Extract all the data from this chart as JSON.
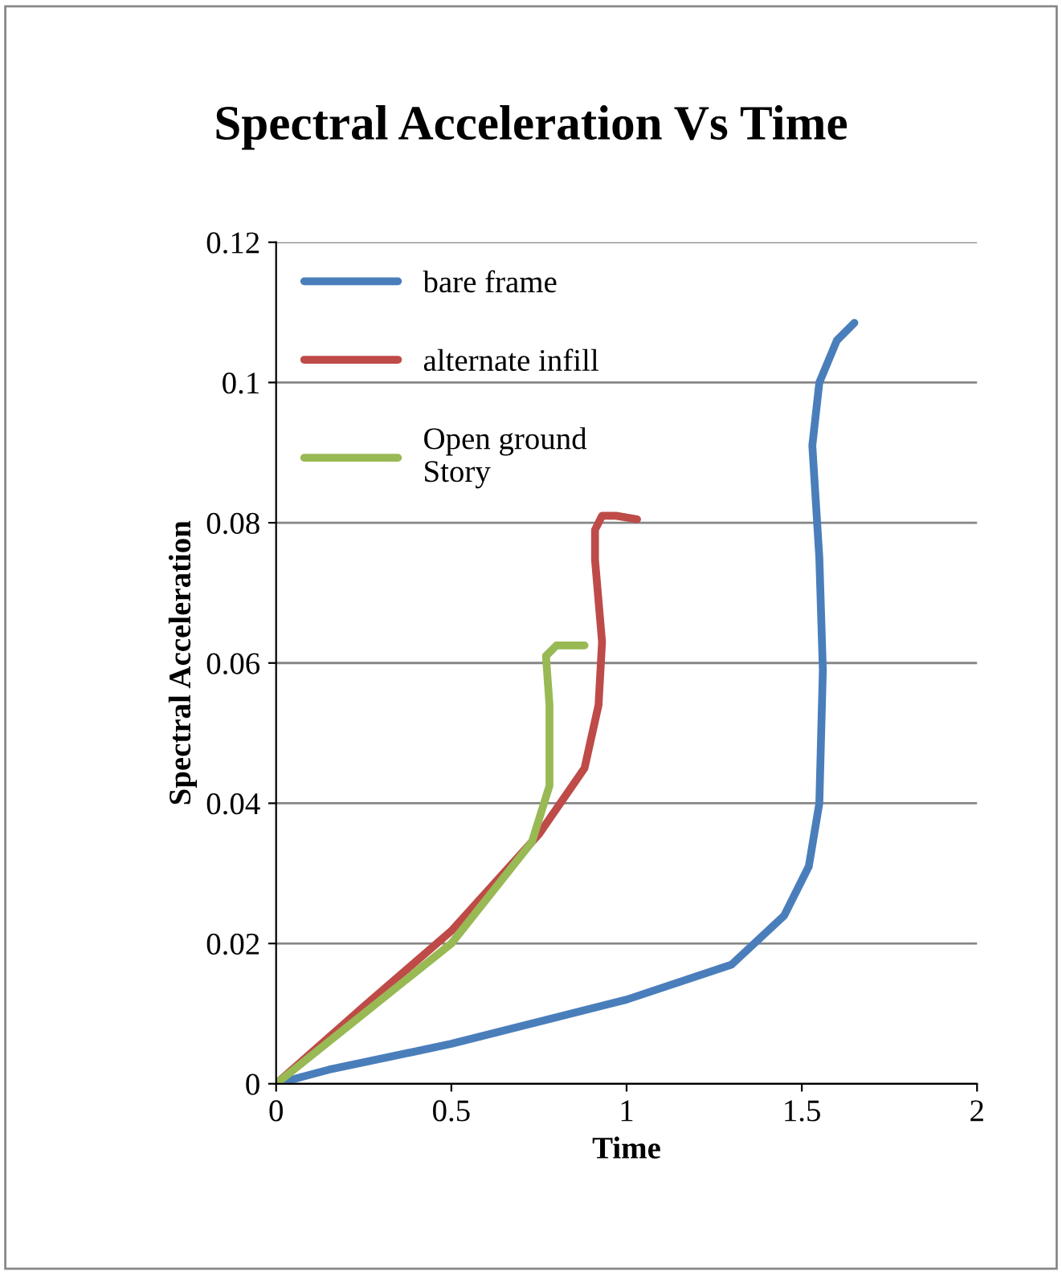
{
  "chart_data": {
    "type": "line",
    "title": "Spectral Acceleration Vs Time",
    "xlabel": "Time",
    "ylabel": "Spectral Acceleration",
    "xlim": [
      0,
      2
    ],
    "xticks": [
      0,
      0.5,
      1,
      1.5,
      2
    ],
    "ylim": [
      0,
      0.12
    ],
    "yticks": [
      0,
      0.02,
      0.04,
      0.06,
      0.08,
      0.1,
      0.12
    ],
    "grid": "y",
    "legend": "top left",
    "marker": "none",
    "line_style": "solid",
    "series": [
      {
        "name": "bare frame",
        "color": "#4a7ebb",
        "x": [
          0,
          0.15,
          0.5,
          1,
          1.3,
          1.45,
          1.52,
          1.55,
          1.56,
          1.55,
          1.53,
          1.55,
          1.6,
          1.65
        ],
        "values": [
          0,
          0.002,
          0.0057,
          0.012,
          0.017,
          0.024,
          0.031,
          0.04,
          0.059,
          0.075,
          0.091,
          0.1,
          0.106,
          0.1085
        ]
      },
      {
        "name": "alternate infill",
        "color": "#be4b48",
        "x": [
          0,
          0.25,
          0.5,
          0.75,
          0.88,
          0.92,
          0.93,
          0.91,
          0.91,
          0.93,
          0.97,
          1.03
        ],
        "values": [
          0,
          0.011,
          0.0218,
          0.0356,
          0.045,
          0.054,
          0.063,
          0.0747,
          0.079,
          0.081,
          0.081,
          0.0805
        ]
      },
      {
        "name": "Open ground\nStory",
        "color": "#98b954",
        "x": [
          0,
          0.25,
          0.5,
          0.73,
          0.78,
          0.78,
          0.77,
          0.8,
          0.88
        ],
        "values": [
          0,
          0.01,
          0.02,
          0.0345,
          0.0425,
          0.054,
          0.061,
          0.0625,
          0.0625
        ]
      }
    ]
  }
}
